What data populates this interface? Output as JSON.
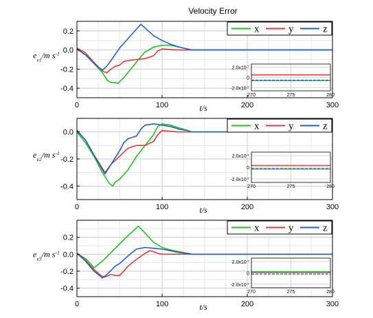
{
  "chart_data": [
    {
      "type": "line",
      "title": "Velocity Error",
      "xlabel": "t/s",
      "ylabel": "e_v1/m s^-1",
      "xlim": [
        0,
        300
      ],
      "ylim": [
        -0.5,
        0.3
      ],
      "xticks": [
        0,
        100,
        200,
        300
      ],
      "yticks": [
        0.2,
        0.0,
        -0.2,
        -0.4
      ],
      "xtick_labels": [
        "0",
        "100",
        "200",
        "300"
      ],
      "ytick_labels": [
        "0.2",
        "0.0",
        "-0.2",
        "-0.4"
      ],
      "grid": true,
      "legend_position": "top-right",
      "colors": {
        "x": "#1fc21f",
        "y": "#e03a3a",
        "z": "#2060c8"
      },
      "series": [
        {
          "name": "x",
          "points": [
            [
              0,
              0.01
            ],
            [
              10,
              -0.05
            ],
            [
              20,
              -0.14
            ],
            [
              30,
              -0.24
            ],
            [
              36,
              -0.32
            ],
            [
              40,
              -0.34
            ],
            [
              44,
              -0.34
            ],
            [
              48,
              -0.35
            ],
            [
              55,
              -0.29
            ],
            [
              65,
              -0.18
            ],
            [
              75,
              -0.07
            ],
            [
              80,
              -0.02
            ],
            [
              90,
              0.03
            ],
            [
              100,
              0.05
            ],
            [
              110,
              0.05
            ],
            [
              120,
              0.03
            ],
            [
              130,
              0.01
            ],
            [
              135,
              0.0
            ],
            [
              300,
              0.0
            ]
          ]
        },
        {
          "name": "y",
          "points": [
            [
              0,
              0.02
            ],
            [
              10,
              -0.03
            ],
            [
              20,
              -0.13
            ],
            [
              30,
              -0.22
            ],
            [
              35,
              -0.24
            ],
            [
              40,
              -0.2
            ],
            [
              45,
              -0.17
            ],
            [
              50,
              -0.16
            ],
            [
              55,
              -0.12
            ],
            [
              60,
              -0.11
            ],
            [
              70,
              -0.1
            ],
            [
              80,
              -0.09
            ],
            [
              90,
              -0.06
            ],
            [
              95,
              -0.01
            ],
            [
              100,
              0.01
            ],
            [
              110,
              0.005
            ],
            [
              120,
              0.0
            ],
            [
              300,
              0.0
            ]
          ]
        },
        {
          "name": "z",
          "points": [
            [
              0,
              0.01
            ],
            [
              10,
              -0.05
            ],
            [
              20,
              -0.14
            ],
            [
              25,
              -0.18
            ],
            [
              30,
              -0.21
            ],
            [
              35,
              -0.17
            ],
            [
              40,
              -0.11
            ],
            [
              50,
              0.02
            ],
            [
              60,
              0.12
            ],
            [
              70,
              0.22
            ],
            [
              75,
              0.27
            ],
            [
              80,
              0.23
            ],
            [
              90,
              0.15
            ],
            [
              100,
              0.1
            ],
            [
              110,
              0.06
            ],
            [
              120,
              0.03
            ],
            [
              130,
              0.01
            ],
            [
              135,
              0.0
            ],
            [
              300,
              0.0
            ]
          ]
        }
      ],
      "legend": [
        "x",
        "y",
        "z"
      ],
      "inset": {
        "xlim": [
          270,
          280
        ],
        "ylim": [
          -2.6e-07,
          2.6e-07
        ],
        "xtick_labels": [
          "270",
          "275",
          "280"
        ],
        "ytick_labels": [
          "2.0x10^-7",
          "0",
          "-2.0x10^-7"
        ],
        "xticks": [
          270,
          275,
          280
        ],
        "yticks": [
          2e-07,
          0,
          -2e-07
        ],
        "series": [
          {
            "name": "x",
            "value": -6e-08
          },
          {
            "name": "y",
            "value": 5e-08
          },
          {
            "name": "z",
            "value": -5.5e-08
          }
        ]
      }
    },
    {
      "type": "line",
      "title": "",
      "xlabel": "t/s",
      "ylabel": "e_v2/m s^-1",
      "xlim": [
        0,
        300
      ],
      "ylim": [
        -0.5,
        0.1
      ],
      "xticks": [
        0,
        100,
        200,
        300
      ],
      "yticks": [
        0.0,
        -0.2,
        -0.4
      ],
      "xtick_labels": [
        "0",
        "100",
        "200",
        "300"
      ],
      "ytick_labels": [
        "0.0",
        "-0.2",
        "-0.4"
      ],
      "grid": true,
      "legend_position": "top-right",
      "colors": {
        "x": "#1fc21f",
        "y": "#e03a3a",
        "z": "#2060c8"
      },
      "series": [
        {
          "name": "x",
          "points": [
            [
              0,
              0.0
            ],
            [
              10,
              -0.08
            ],
            [
              20,
              -0.18
            ],
            [
              30,
              -0.3
            ],
            [
              38,
              -0.38
            ],
            [
              42,
              -0.4
            ],
            [
              45,
              -0.37
            ],
            [
              50,
              -0.35
            ],
            [
              60,
              -0.28
            ],
            [
              70,
              -0.18
            ],
            [
              80,
              -0.1
            ],
            [
              90,
              -0.02
            ],
            [
              95,
              0.04
            ],
            [
              100,
              0.06
            ],
            [
              110,
              0.05
            ],
            [
              120,
              0.03
            ],
            [
              130,
              0.01
            ],
            [
              135,
              0.0
            ],
            [
              300,
              0.0
            ]
          ]
        },
        {
          "name": "y",
          "points": [
            [
              0,
              0.01
            ],
            [
              10,
              -0.06
            ],
            [
              20,
              -0.17
            ],
            [
              30,
              -0.27
            ],
            [
              33,
              -0.3
            ],
            [
              40,
              -0.24
            ],
            [
              50,
              -0.18
            ],
            [
              60,
              -0.12
            ],
            [
              70,
              -0.1
            ],
            [
              80,
              -0.1
            ],
            [
              90,
              -0.07
            ],
            [
              95,
              -0.02
            ],
            [
              100,
              0.01
            ],
            [
              110,
              0.005
            ],
            [
              120,
              0.0
            ],
            [
              300,
              0.0
            ]
          ]
        },
        {
          "name": "z",
          "points": [
            [
              0,
              0.01
            ],
            [
              10,
              -0.06
            ],
            [
              20,
              -0.17
            ],
            [
              30,
              -0.28
            ],
            [
              33,
              -0.31
            ],
            [
              40,
              -0.24
            ],
            [
              50,
              -0.14
            ],
            [
              55,
              -0.08
            ],
            [
              60,
              -0.05
            ],
            [
              70,
              -0.03
            ],
            [
              75,
              0.02
            ],
            [
              80,
              0.05
            ],
            [
              90,
              0.06
            ],
            [
              100,
              0.05
            ],
            [
              110,
              0.04
            ],
            [
              120,
              0.02
            ],
            [
              130,
              0.01
            ],
            [
              135,
              0.0
            ],
            [
              300,
              0.0
            ]
          ]
        }
      ],
      "legend": [
        "x",
        "y",
        "z"
      ],
      "inset": {
        "xlim": [
          270,
          280
        ],
        "ylim": [
          -2.6e-07,
          2.6e-07
        ],
        "xtick_labels": [
          "270",
          "275",
          "280"
        ],
        "ytick_labels": [
          "2.0x10^-7",
          "0",
          "-2.0x10^-7"
        ],
        "xticks": [
          270,
          275,
          280
        ],
        "yticks": [
          2e-07,
          0,
          -2e-07
        ],
        "series": [
          {
            "name": "x",
            "value": -3e-08
          },
          {
            "name": "y",
            "value": 3e-08
          },
          {
            "name": "z",
            "value": -2.5e-08
          }
        ]
      }
    },
    {
      "type": "line",
      "title": "",
      "xlabel": "t/s",
      "ylabel": "e_v3/m s^-1",
      "xlim": [
        0,
        300
      ],
      "ylim": [
        -0.5,
        0.4
      ],
      "xticks": [
        0,
        100,
        200,
        300
      ],
      "yticks": [
        0.2,
        0.0,
        -0.2,
        -0.4
      ],
      "xtick_labels": [
        "0",
        "100",
        "200",
        "300"
      ],
      "ytick_labels": [
        "0.2",
        "0.0",
        "-0.2",
        "-0.4"
      ],
      "grid": true,
      "legend_position": "top-right",
      "colors": {
        "x": "#1fc21f",
        "y": "#e03a3a",
        "z": "#2060c8"
      },
      "series": [
        {
          "name": "x",
          "points": [
            [
              0,
              0.01
            ],
            [
              10,
              -0.05
            ],
            [
              15,
              -0.1
            ],
            [
              20,
              -0.16
            ],
            [
              30,
              -0.08
            ],
            [
              40,
              0.02
            ],
            [
              50,
              0.12
            ],
            [
              60,
              0.22
            ],
            [
              70,
              0.31
            ],
            [
              72,
              0.33
            ],
            [
              80,
              0.25
            ],
            [
              90,
              0.14
            ],
            [
              100,
              0.08
            ],
            [
              110,
              0.05
            ],
            [
              120,
              0.03
            ],
            [
              130,
              0.01
            ],
            [
              135,
              0.0
            ],
            [
              300,
              0.0
            ]
          ]
        },
        {
          "name": "y",
          "points": [
            [
              0,
              0.01
            ],
            [
              10,
              -0.07
            ],
            [
              20,
              -0.18
            ],
            [
              28,
              -0.25
            ],
            [
              32,
              -0.27
            ],
            [
              35,
              -0.26
            ],
            [
              40,
              -0.24
            ],
            [
              45,
              -0.25
            ],
            [
              50,
              -0.25
            ],
            [
              55,
              -0.2
            ],
            [
              60,
              -0.14
            ],
            [
              70,
              -0.06
            ],
            [
              80,
              0.01
            ],
            [
              85,
              0.04
            ],
            [
              90,
              0.03
            ],
            [
              95,
              0.01
            ],
            [
              100,
              0.0
            ],
            [
              300,
              0.0
            ]
          ]
        },
        {
          "name": "z",
          "points": [
            [
              0,
              0.01
            ],
            [
              10,
              -0.08
            ],
            [
              20,
              -0.2
            ],
            [
              30,
              -0.28
            ],
            [
              35,
              -0.24
            ],
            [
              40,
              -0.19
            ],
            [
              45,
              -0.14
            ],
            [
              50,
              -0.11
            ],
            [
              60,
              -0.02
            ],
            [
              70,
              0.06
            ],
            [
              80,
              0.08
            ],
            [
              90,
              0.07
            ],
            [
              100,
              0.06
            ],
            [
              110,
              0.04
            ],
            [
              120,
              0.02
            ],
            [
              130,
              0.01
            ],
            [
              135,
              0.0
            ],
            [
              300,
              0.0
            ]
          ]
        }
      ],
      "legend": [
        "x",
        "y",
        "z"
      ],
      "inset": {
        "xlim": [
          270,
          280
        ],
        "ylim": [
          -2.6e-07,
          2.6e-07
        ],
        "xtick_labels": [
          "270",
          "275",
          "280"
        ],
        "ytick_labels": [
          "2.0x10^-7",
          "0",
          "-2.0x10^-7"
        ],
        "xticks": [
          270,
          275,
          280
        ],
        "yticks": [
          2e-07,
          0,
          -2e-07
        ],
        "series": [
          {
            "name": "x",
            "value": 2e-08
          },
          {
            "name": "y",
            "value": 1e-08
          },
          {
            "name": "z",
            "value": -2e-08
          }
        ]
      }
    }
  ]
}
